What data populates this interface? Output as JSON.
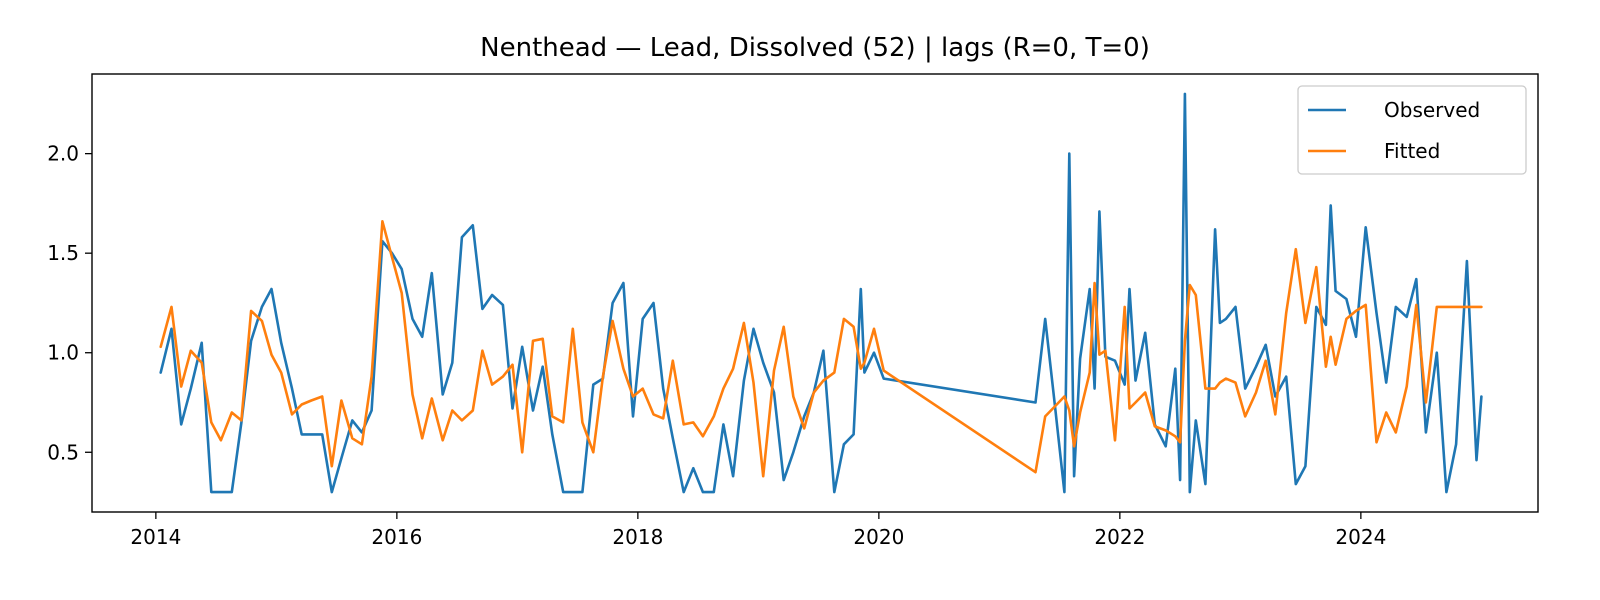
{
  "chart_data": {
    "type": "line",
    "title": "Nenthead — Lead, Dissolved (52) | lags (R=0, T=0)",
    "xlabel": "",
    "ylabel": "",
    "xlim": [
      2013.47,
      2025.47
    ],
    "ylim": [
      0.2,
      2.4
    ],
    "x_ticks": [
      2014,
      2016,
      2018,
      2020,
      2022,
      2024
    ],
    "x_tick_labels": [
      "2014",
      "2016",
      "2018",
      "2020",
      "2022",
      "2024"
    ],
    "y_ticks": [
      0.5,
      1.0,
      1.5,
      2.0
    ],
    "y_tick_labels": [
      "0.5",
      "1.0",
      "1.5",
      "2.0"
    ],
    "grid": false,
    "legend": {
      "position": "top-right",
      "entries": [
        "Observed",
        "Fitted"
      ]
    },
    "series": [
      {
        "name": "Observed",
        "color": "#1f77b4",
        "x": [
          2014.04,
          2014.13,
          2014.21,
          2014.29,
          2014.38,
          2014.46,
          2014.54,
          2014.63,
          2014.71,
          2014.79,
          2014.88,
          2014.96,
          2015.04,
          2015.13,
          2015.21,
          2015.29,
          2015.38,
          2015.46,
          2015.54,
          2015.63,
          2015.71,
          2015.79,
          2015.88,
          2015.96,
          2016.04,
          2016.13,
          2016.21,
          2016.29,
          2016.38,
          2016.46,
          2016.54,
          2016.63,
          2016.71,
          2016.79,
          2016.88,
          2016.96,
          2017.04,
          2017.13,
          2017.21,
          2017.29,
          2017.38,
          2017.46,
          2017.54,
          2017.63,
          2017.71,
          2017.79,
          2017.88,
          2017.96,
          2018.04,
          2018.13,
          2018.21,
          2018.29,
          2018.38,
          2018.46,
          2018.54,
          2018.63,
          2018.71,
          2018.79,
          2018.88,
          2018.96,
          2019.04,
          2019.13,
          2019.21,
          2019.29,
          2019.38,
          2019.46,
          2019.54,
          2019.63,
          2019.71,
          2019.79,
          2019.85,
          2019.88,
          2019.96,
          2020.04,
          2021.3,
          2021.38,
          2021.46,
          2021.54,
          2021.58,
          2021.62,
          2021.67,
          2021.75,
          2021.79,
          2021.83,
          2021.88,
          2021.96,
          2022.04,
          2022.08,
          2022.13,
          2022.21,
          2022.29,
          2022.38,
          2022.46,
          2022.5,
          2022.54,
          2022.58,
          2022.63,
          2022.71,
          2022.79,
          2022.83,
          2022.88,
          2022.96,
          2023.04,
          2023.13,
          2023.21,
          2023.29,
          2023.38,
          2023.46,
          2023.54,
          2023.63,
          2023.71,
          2023.75,
          2023.79,
          2023.88,
          2023.96,
          2024.04,
          2024.13,
          2024.21,
          2024.29,
          2024.38,
          2024.46,
          2024.54,
          2024.63,
          2024.71,
          2024.79,
          2024.88,
          2024.96,
          2025.0
        ],
        "y": [
          0.9,
          1.12,
          0.64,
          0.82,
          1.05,
          0.3,
          0.3,
          0.3,
          0.65,
          1.06,
          1.23,
          1.32,
          1.05,
          0.82,
          0.59,
          0.59,
          0.59,
          0.3,
          0.47,
          0.66,
          0.6,
          0.71,
          1.56,
          1.5,
          1.42,
          1.17,
          1.08,
          1.4,
          0.79,
          0.95,
          1.58,
          1.64,
          1.22,
          1.29,
          1.24,
          0.72,
          1.03,
          0.71,
          0.93,
          0.59,
          0.3,
          0.3,
          0.3,
          0.84,
          0.87,
          1.25,
          1.35,
          0.68,
          1.17,
          1.25,
          0.82,
          0.57,
          0.3,
          0.42,
          0.3,
          0.3,
          0.64,
          0.38,
          0.86,
          1.12,
          0.95,
          0.8,
          0.36,
          0.5,
          0.68,
          0.8,
          1.01,
          0.3,
          0.54,
          0.59,
          1.32,
          0.9,
          1.0,
          0.87,
          0.75,
          1.17,
          0.74,
          0.3,
          2.0,
          0.38,
          0.97,
          1.32,
          0.82,
          1.71,
          0.98,
          0.96,
          0.84,
          1.32,
          0.86,
          1.1,
          0.64,
          0.53,
          0.92,
          0.36,
          2.3,
          0.3,
          0.66,
          0.34,
          1.62,
          1.15,
          1.17,
          1.23,
          0.82,
          0.93,
          1.04,
          0.78,
          0.88,
          0.34,
          0.43,
          1.23,
          1.14,
          1.74,
          1.31,
          1.27,
          1.08,
          1.63,
          1.2,
          0.85,
          1.23,
          1.18,
          1.37,
          0.6,
          1.0,
          0.3,
          0.54,
          1.46,
          0.46,
          0.78
        ]
      },
      {
        "name": "Fitted",
        "color": "#ff7f0e",
        "x": [
          2014.04,
          2014.13,
          2014.21,
          2014.29,
          2014.38,
          2014.46,
          2014.54,
          2014.63,
          2014.71,
          2014.79,
          2014.88,
          2014.96,
          2015.04,
          2015.13,
          2015.21,
          2015.29,
          2015.38,
          2015.46,
          2015.54,
          2015.63,
          2015.71,
          2015.79,
          2015.88,
          2015.96,
          2016.04,
          2016.13,
          2016.21,
          2016.29,
          2016.38,
          2016.46,
          2016.54,
          2016.63,
          2016.71,
          2016.79,
          2016.88,
          2016.96,
          2017.04,
          2017.13,
          2017.21,
          2017.29,
          2017.38,
          2017.46,
          2017.54,
          2017.63,
          2017.71,
          2017.79,
          2017.88,
          2017.96,
          2018.04,
          2018.13,
          2018.21,
          2018.29,
          2018.38,
          2018.46,
          2018.54,
          2018.63,
          2018.71,
          2018.79,
          2018.88,
          2018.96,
          2019.04,
          2019.13,
          2019.21,
          2019.29,
          2019.38,
          2019.46,
          2019.54,
          2019.63,
          2019.71,
          2019.79,
          2019.85,
          2019.88,
          2019.96,
          2020.04,
          2021.3,
          2021.38,
          2021.46,
          2021.54,
          2021.58,
          2021.62,
          2021.67,
          2021.75,
          2021.79,
          2021.83,
          2021.88,
          2021.96,
          2022.04,
          2022.08,
          2022.13,
          2022.21,
          2022.29,
          2022.38,
          2022.46,
          2022.5,
          2022.54,
          2022.58,
          2022.63,
          2022.71,
          2022.79,
          2022.83,
          2022.88,
          2022.96,
          2023.04,
          2023.13,
          2023.21,
          2023.29,
          2023.38,
          2023.46,
          2023.54,
          2023.63,
          2023.71,
          2023.75,
          2023.79,
          2023.88,
          2023.96,
          2024.04,
          2024.13,
          2024.21,
          2024.29,
          2024.38,
          2024.46,
          2024.54,
          2024.63,
          2024.71,
          2024.79,
          2024.88,
          2024.96,
          2025.0
        ],
        "y": [
          1.03,
          1.23,
          0.83,
          1.01,
          0.95,
          0.65,
          0.56,
          0.7,
          0.66,
          1.21,
          1.16,
          0.99,
          0.9,
          0.69,
          0.74,
          0.76,
          0.78,
          0.43,
          0.76,
          0.57,
          0.54,
          0.88,
          1.66,
          1.48,
          1.3,
          0.79,
          0.57,
          0.77,
          0.56,
          0.71,
          0.66,
          0.71,
          1.01,
          0.84,
          0.88,
          0.94,
          0.5,
          1.06,
          1.07,
          0.68,
          0.65,
          1.12,
          0.65,
          0.5,
          0.88,
          1.16,
          0.92,
          0.78,
          0.82,
          0.69,
          0.67,
          0.96,
          0.64,
          0.65,
          0.58,
          0.68,
          0.82,
          0.92,
          1.15,
          0.85,
          0.38,
          0.91,
          1.13,
          0.78,
          0.62,
          0.8,
          0.86,
          0.9,
          1.17,
          1.13,
          0.92,
          0.95,
          1.12,
          0.91,
          0.4,
          0.68,
          0.73,
          0.78,
          0.71,
          0.53,
          0.7,
          0.9,
          1.35,
          0.99,
          1.01,
          0.56,
          1.23,
          0.72,
          0.75,
          0.8,
          0.63,
          0.61,
          0.58,
          0.55,
          1.06,
          1.34,
          1.29,
          0.82,
          0.82,
          0.85,
          0.87,
          0.85,
          0.68,
          0.8,
          0.96,
          0.69,
          1.2,
          1.52,
          1.15,
          1.43,
          0.93,
          1.08,
          0.94,
          1.17,
          1.21,
          1.24,
          0.55,
          0.7,
          0.6,
          0.83,
          1.24,
          0.75,
          1.23,
          1.23,
          1.23,
          1.23,
          1.23,
          1.23
        ]
      }
    ]
  }
}
